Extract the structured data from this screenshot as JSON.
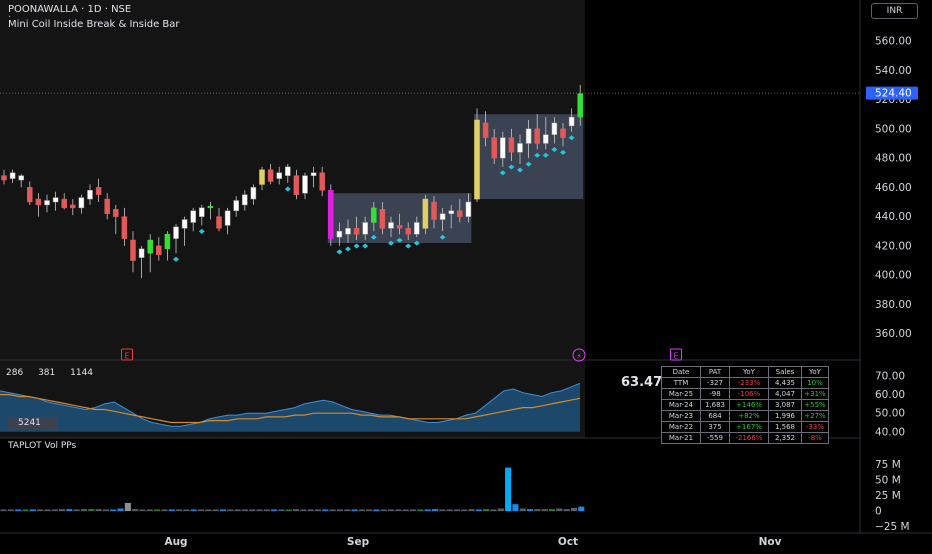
{
  "header": {
    "symbol_title": "POONAWALLA · 1D · NSE",
    "marker": "·",
    "indicator_name": "Mini Coil Inside Break & Inside Bar",
    "currency": "INR"
  },
  "colors": {
    "bg": "#000000",
    "chart_bg": "#131313",
    "up": "#ffffff",
    "down": "#e35858",
    "bright_up": "#35e035",
    "yellow": "#e0cf63",
    "magenta": "#e020e0",
    "diamond": "#26c6da",
    "price_line": "#2962ff",
    "coil_box": "#5b6784",
    "area_fill": "#1f5a8a",
    "ma_line": "#d48a2a",
    "vol_blue": "#1e88e5",
    "vol_spike": "#03a9f4"
  },
  "price_axis": {
    "ticks": [
      "560.00",
      "540.00",
      "520.00",
      "500.00",
      "480.00",
      "460.00",
      "440.00",
      "420.00",
      "400.00",
      "380.00",
      "360.00"
    ],
    "tick_values": [
      560,
      540,
      520,
      500,
      480,
      460,
      440,
      420,
      400,
      380,
      360
    ],
    "last_price": "524.40",
    "last_value": 524.4
  },
  "oscillator": {
    "values": [
      "286",
      "381",
      "1144"
    ],
    "box_value": "5241",
    "right_value": "63.47",
    "axis_ticks": [
      "70.00",
      "60.00",
      "50.00",
      "40.00"
    ],
    "axis_values": [
      70,
      60,
      50,
      40
    ],
    "area": [
      62,
      61,
      60,
      59,
      58,
      56,
      55,
      54,
      53,
      52,
      53,
      55,
      56,
      53,
      50,
      47,
      45,
      44,
      43,
      43,
      44,
      45,
      47,
      48,
      49,
      49,
      50,
      50,
      50,
      51,
      52,
      53,
      55,
      56,
      57,
      56,
      54,
      52,
      51,
      50,
      49,
      49,
      48,
      47,
      46,
      45,
      45,
      46,
      47,
      49,
      50,
      54,
      58,
      62,
      63,
      61,
      60,
      59,
      61,
      62,
      64,
      66
    ],
    "ma": [
      60,
      60,
      59,
      59,
      58,
      57,
      56,
      55,
      54,
      53,
      52,
      52,
      51,
      50,
      49,
      48,
      47,
      46,
      45,
      45,
      45,
      45,
      46,
      46,
      46,
      47,
      47,
      47,
      48,
      48,
      48,
      49,
      49,
      50,
      50,
      50,
      50,
      50,
      49,
      49,
      48,
      48,
      48,
      47,
      47,
      47,
      47,
      47,
      47,
      47,
      48,
      49,
      50,
      51,
      52,
      53,
      53,
      54,
      55,
      56,
      57,
      58
    ]
  },
  "volume": {
    "name": "TAPLOT Vol PPs",
    "axis_ticks": [
      "75 M",
      "50 M",
      "25 M",
      "0",
      "−25 M"
    ],
    "axis_values": [
      75,
      50,
      25,
      0,
      -25
    ],
    "bars": [
      2,
      2,
      2,
      2,
      2,
      2,
      2,
      2,
      3,
      3,
      2,
      3,
      3,
      3,
      2,
      2,
      4,
      13,
      3,
      2,
      2,
      2,
      2,
      2,
      2,
      2,
      2,
      2,
      2,
      2,
      2,
      2,
      2,
      2,
      2,
      2,
      2,
      2,
      2,
      2,
      3,
      2,
      2,
      2,
      2,
      2,
      2,
      2,
      2,
      2,
      2,
      2,
      2,
      2,
      2,
      2,
      2,
      2,
      2,
      3,
      2,
      2,
      2,
      2,
      3,
      2,
      3,
      2,
      4,
      70,
      11,
      4,
      3,
      3,
      3,
      3,
      4,
      3,
      5,
      7
    ]
  },
  "time_axis": {
    "labels": [
      "Aug",
      "Sep",
      "Oct",
      "Nov"
    ]
  },
  "event_markers": [
    "E",
    "⚡",
    "E"
  ],
  "fundamentals": {
    "headers": [
      "Date",
      "PAT",
      "YoY",
      "Sales",
      "YoY"
    ],
    "rows": [
      [
        "TTM",
        "-327",
        "-233%",
        "4,435",
        "10%"
      ],
      [
        "Mar-25",
        "-98",
        "-106%",
        "4,047",
        "+31%"
      ],
      [
        "Mar-24",
        "1,683",
        "+146%",
        "3,087",
        "+55%"
      ],
      [
        "Mar-23",
        "684",
        "+82%",
        "1,996",
        "+27%"
      ],
      [
        "Mar-22",
        "375",
        "+167%",
        "1,568",
        "-33%"
      ],
      [
        "Mar-21",
        "-559",
        "-2166%",
        "2,352",
        "-8%"
      ]
    ]
  },
  "chart_data": {
    "type": "candlestick",
    "title": "POONAWALLA · 1D · NSE",
    "ylabel": "INR",
    "ylim": [
      350,
      575
    ],
    "x": [
      "Aug",
      "Sep",
      "Oct",
      "Nov"
    ],
    "candles": [
      [
        468,
        472,
        462,
        465
      ],
      [
        466,
        472,
        463,
        470
      ],
      [
        465,
        469,
        460,
        468
      ],
      [
        460,
        464,
        448,
        450
      ],
      [
        452,
        456,
        440,
        448
      ],
      [
        448,
        455,
        443,
        451
      ],
      [
        450,
        457,
        444,
        453
      ],
      [
        452,
        456,
        445,
        446
      ],
      [
        448,
        452,
        441,
        446
      ],
      [
        446,
        455,
        442,
        453
      ],
      [
        452,
        462,
        448,
        458
      ],
      [
        460,
        466,
        450,
        455
      ],
      [
        452,
        456,
        438,
        442
      ],
      [
        445,
        448,
        428,
        440
      ],
      [
        440,
        446,
        420,
        425
      ],
      [
        424,
        430,
        402,
        410
      ],
      [
        412,
        420,
        398,
        418
      ],
      [
        415,
        428,
        402,
        424
      ],
      [
        420,
        426,
        410,
        414
      ],
      [
        418,
        430,
        410,
        428
      ],
      [
        425,
        435,
        415,
        433
      ],
      [
        432,
        440,
        420,
        438
      ],
      [
        436,
        446,
        430,
        444
      ],
      [
        440,
        448,
        434,
        446
      ],
      [
        446,
        450,
        438,
        447
      ],
      [
        440,
        446,
        430,
        432
      ],
      [
        434,
        446,
        428,
        444
      ],
      [
        444,
        454,
        440,
        451
      ],
      [
        448,
        458,
        444,
        455
      ],
      [
        452,
        462,
        448,
        460
      ],
      [
        462,
        474,
        458,
        472
      ],
      [
        472,
        476,
        462,
        464
      ],
      [
        466,
        474,
        462,
        470
      ],
      [
        468,
        476,
        463,
        474
      ],
      [
        468,
        472,
        452,
        455
      ],
      [
        456,
        470,
        452,
        468
      ],
      [
        468,
        474,
        460,
        470
      ],
      [
        470,
        474,
        454,
        458
      ],
      [
        458,
        462,
        420,
        425
      ],
      [
        426,
        436,
        420,
        430
      ],
      [
        428,
        438,
        422,
        432
      ],
      [
        432,
        440,
        424,
        428
      ],
      [
        428,
        440,
        424,
        436
      ],
      [
        436,
        450,
        430,
        446
      ],
      [
        445,
        450,
        428,
        432
      ],
      [
        432,
        440,
        426,
        436
      ],
      [
        434,
        442,
        428,
        432
      ],
      [
        432,
        436,
        424,
        428
      ],
      [
        428,
        440,
        426,
        436
      ],
      [
        432,
        455,
        428,
        452
      ],
      [
        450,
        454,
        432,
        438
      ],
      [
        438,
        446,
        430,
        442
      ],
      [
        442,
        448,
        432,
        444
      ],
      [
        444,
        452,
        436,
        440
      ],
      [
        440,
        456,
        436,
        450
      ],
      [
        452,
        514,
        450,
        506
      ],
      [
        504,
        512,
        488,
        494
      ],
      [
        494,
        500,
        476,
        480
      ],
      [
        480,
        498,
        474,
        494
      ],
      [
        494,
        500,
        478,
        484
      ],
      [
        484,
        496,
        476,
        490
      ],
      [
        490,
        506,
        480,
        500
      ],
      [
        500,
        510,
        486,
        490
      ],
      [
        490,
        508,
        486,
        496
      ],
      [
        496,
        508,
        490,
        504
      ],
      [
        500,
        504,
        488,
        494
      ],
      [
        502,
        514,
        498,
        508
      ],
      [
        508,
        530,
        502,
        524
      ]
    ]
  }
}
